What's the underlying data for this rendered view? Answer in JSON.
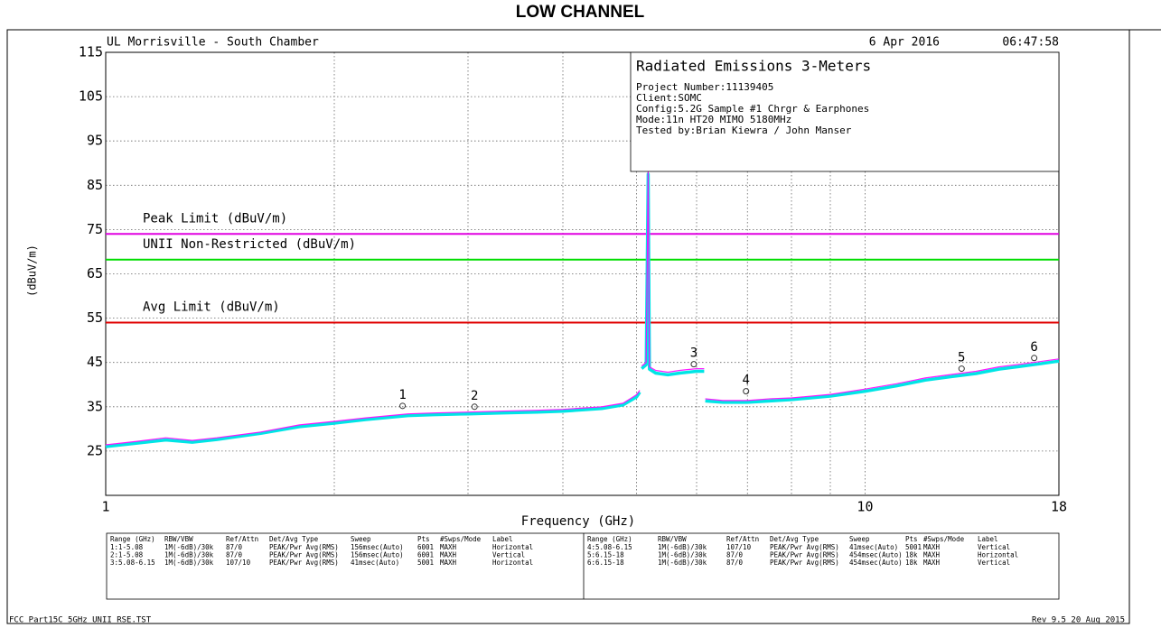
{
  "chart_data": {
    "type": "line",
    "title": "LOW CHANNEL",
    "header_left": "UL Morrisville - South Chamber",
    "date": "6 Apr 2016",
    "time": "06:47:58",
    "xlabel": "Frequency (GHz)",
    "ylabel": "(dBuV/m)",
    "xscale": "log",
    "xlim": [
      1,
      18
    ],
    "xticks": [
      1,
      10,
      18
    ],
    "xgrid": [
      2,
      3,
      4,
      5,
      6,
      7,
      8,
      9,
      10
    ],
    "ylim": [
      15,
      115
    ],
    "yticks": [
      25,
      35,
      45,
      55,
      65,
      75,
      85,
      95,
      105,
      115
    ],
    "grid": true,
    "x": [
      1.0,
      1.1,
      1.2,
      1.3,
      1.4,
      1.6,
      1.8,
      2.0,
      2.2,
      2.5,
      2.7,
      3.0,
      3.3,
      3.7,
      4.0,
      4.5,
      4.8,
      5.0,
      5.05,
      5.07,
      5.08,
      5.15,
      5.18,
      5.2,
      5.3,
      5.5,
      5.7,
      6.0,
      6.14,
      6.15,
      6.16,
      6.5,
      7.0,
      7.5,
      8.0,
      9.0,
      10,
      11,
      12,
      13,
      14,
      15,
      16,
      17,
      18
    ],
    "series": [
      {
        "color": "#ff00ff",
        "values": [
          26.4,
          27.2,
          28,
          27.4,
          28,
          29.3,
          30.9,
          31.7,
          32.5,
          33.4,
          33.6,
          33.8,
          34,
          34.2,
          34.4,
          35,
          35.8,
          37.7,
          38.7,
          null,
          44.2,
          45,
          88.5,
          44,
          43.2,
          42.8,
          43.2,
          43.6,
          43.6,
          null,
          36.8,
          36.4,
          36.4,
          36.8,
          37,
          37.8,
          39,
          40.2,
          41.5,
          42.3,
          43,
          44,
          44.6,
          45.2,
          45.8
        ]
      },
      {
        "color": "#00e5e5",
        "values": [
          26.0,
          26.8,
          27.5,
          27.0,
          27.6,
          29.0,
          30.5,
          31.3,
          32.1,
          33.0,
          33.2,
          33.4,
          33.6,
          33.8,
          34.0,
          34.6,
          35.4,
          37.2,
          38.3,
          null,
          43.6,
          44.5,
          87.5,
          43.5,
          42.6,
          42.2,
          42.6,
          43.0,
          43.0,
          null,
          36.3,
          36.0,
          36.0,
          36.3,
          36.6,
          37.4,
          38.5,
          39.7,
          41.0,
          41.8,
          42.5,
          43.5,
          44.1,
          44.7,
          45.3
        ]
      }
    ],
    "limits": [
      {
        "label": "Peak Limit (dBuV/m)",
        "value": 74,
        "color": "#e000e0"
      },
      {
        "label": "UNII Non-Restricted (dBuV/m)",
        "value": 68.2,
        "color": "#00dd00"
      },
      {
        "label": "Avg Limit (dBuV/m)",
        "value": 54,
        "color": "#e00000"
      }
    ],
    "markers": [
      {
        "label": "1",
        "x": 2.46,
        "y": 35.2
      },
      {
        "label": "2",
        "x": 3.06,
        "y": 35.0
      },
      {
        "label": "3",
        "x": 5.95,
        "y": 44.6
      },
      {
        "label": "4",
        "x": 6.97,
        "y": 38.5
      },
      {
        "label": "5",
        "x": 13.4,
        "y": 43.6
      },
      {
        "label": "6",
        "x": 16.7,
        "y": 46.0
      }
    ],
    "info": {
      "title": "Radiated Emissions 3-Meters",
      "lines": [
        "Project Number:11139405",
        "Client:SOMC",
        "Config:5.2G Sample #1 Chrgr & Earphones",
        "Mode:11n HT20 MIMO 5180MHz",
        "Tested by:Brian Kiewra / John Manser"
      ]
    },
    "table": {
      "left": {
        "header": [
          "Range (GHz)",
          "RBW/VBW",
          "Ref/Attn",
          "Det/Avg Type",
          "Sweep",
          "Pts",
          "#Swps/Mode",
          "Label"
        ],
        "rows": [
          [
            "1:1-5.08",
            "1M(-6dB)/30k",
            "87/0",
            "PEAK/Pwr Avg(RMS)",
            "156msec(Auto)",
            "6001",
            "MAXH",
            "Horizontal"
          ],
          [
            "2:1-5.08",
            "1M(-6dB)/30k",
            "87/0",
            "PEAK/Pwr Avg(RMS)",
            "156msec(Auto)",
            "6001",
            "MAXH",
            "Vertical"
          ],
          [
            "3:5.08-6.15",
            "1M(-6dB)/30k",
            "107/10",
            "PEAK/Pwr Avg(RMS)",
            "41msec(Auto)",
            "5001",
            "MAXH",
            "Horizontal"
          ]
        ],
        "colors": [
          "#ff00ff",
          "#00d0d0",
          "#ff00ff"
        ]
      },
      "right": {
        "header": [
          "Range (GHz)",
          "RBW/VBW",
          "Ref/Attn",
          "Det/Avg Type",
          "Sweep",
          "Pts",
          "#Swps/Mode",
          "Label"
        ],
        "rows": [
          [
            "4:5.08-6.15",
            "1M(-6dB)/30k",
            "107/10",
            "PEAK/Pwr Avg(RMS)",
            "41msec(Auto)",
            "5001",
            "MAXH",
            "Vertical"
          ],
          [
            "5:6.15-18",
            "1M(-6dB)/30k",
            "87/0",
            "PEAK/Pwr Avg(RMS)",
            "454msec(Auto)",
            "18k",
            "MAXH",
            "Horizontal"
          ],
          [
            "6:6.15-18",
            "1M(-6dB)/30k",
            "87/0",
            "PEAK/Pwr Avg(RMS)",
            "454msec(Auto)",
            "18k",
            "MAXH",
            "Vertical"
          ]
        ],
        "colors": [
          "#00d0d0",
          "#ff00ff",
          "#00d0d0"
        ]
      }
    },
    "footer_left": "FCC Part15C 5GHz UNII RSE.TST",
    "footer_right": "Rev 9.5 20 Aug 2015"
  }
}
